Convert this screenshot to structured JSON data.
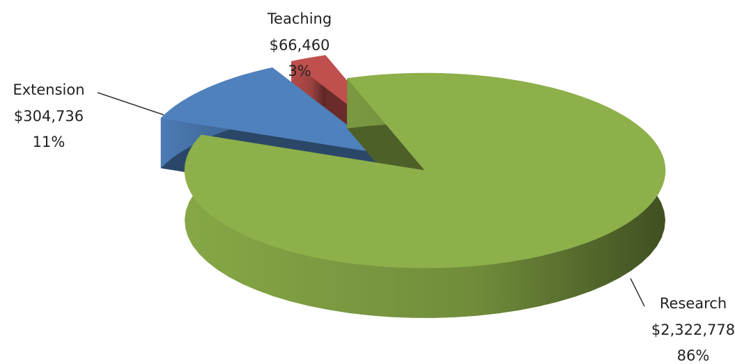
{
  "chart_data": {
    "type": "pie3d",
    "categories": [
      "Research",
      "Extension",
      "Teaching"
    ],
    "values": [
      2322778,
      304736,
      66460
    ],
    "value_labels": [
      "$2,322,778",
      "$304,736",
      "$66,460"
    ],
    "percents": [
      86,
      11,
      3
    ],
    "percent_labels": [
      "86%",
      "11%",
      "3%"
    ],
    "colors": [
      "#8db04a",
      "#4f81bd",
      "#c0504d"
    ]
  }
}
